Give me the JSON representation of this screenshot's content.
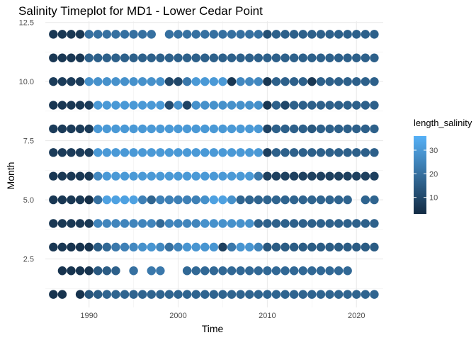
{
  "chart_data": {
    "type": "scatter",
    "title": "Salinity Timeplot for MD1 - Lower Cedar Point",
    "xlabel": "Time",
    "ylabel": "Month",
    "xlim": [
      1985.1,
      2023.0
    ],
    "ylim": [
      0.45,
      12.55
    ],
    "x_ticks": [
      {
        "value": 1990,
        "label": "1990"
      },
      {
        "value": 2000,
        "label": "2000"
      },
      {
        "value": 2010,
        "label": "2010"
      },
      {
        "value": 2020,
        "label": "2020"
      }
    ],
    "y_ticks": [
      {
        "value": 2.5,
        "label": "2.5"
      },
      {
        "value": 5.0,
        "label": "5.0"
      },
      {
        "value": 7.5,
        "label": "7.5"
      },
      {
        "value": 10.0,
        "label": "10.0"
      },
      {
        "value": 12.5,
        "label": "12.5"
      }
    ],
    "grid": true,
    "legend": {
      "title": "length_salinity",
      "placement": "right",
      "range": [
        3,
        36
      ],
      "ticks": [
        {
          "value": 10,
          "label": "10"
        },
        {
          "value": 20,
          "label": "20"
        },
        {
          "value": 30,
          "label": "30"
        }
      ],
      "color_low": "#132b43",
      "color_high": "#56b1f7"
    },
    "years": [
      1986,
      1987,
      1988,
      1989,
      1990,
      1991,
      1992,
      1993,
      1994,
      1995,
      1996,
      1997,
      1998,
      1999,
      2000,
      2001,
      2002,
      2003,
      2004,
      2005,
      2006,
      2007,
      2008,
      2009,
      2010,
      2011,
      2012,
      2013,
      2014,
      2015,
      2016,
      2017,
      2018,
      2019,
      2020,
      2021,
      2022
    ],
    "months": [
      {
        "month": 1,
        "values": [
          5,
          5,
          null,
          5,
          13,
          15,
          17,
          17,
          17,
          17,
          17,
          17,
          17,
          17,
          17,
          17,
          17,
          17,
          17,
          17,
          17,
          17,
          17,
          17,
          17,
          17,
          17,
          17,
          17,
          17,
          17,
          17,
          17,
          17,
          17,
          17,
          17
        ]
      },
      {
        "month": 2,
        "values": [
          null,
          5,
          5,
          5,
          5,
          14,
          15,
          16,
          null,
          20,
          null,
          22,
          22,
          null,
          null,
          18,
          18,
          18,
          18,
          18,
          18,
          18,
          18,
          18,
          18,
          18,
          18,
          18,
          18,
          18,
          18,
          18,
          18,
          18,
          null,
          null,
          null
        ]
      },
      {
        "month": 3,
        "values": [
          6,
          6,
          5,
          5,
          5,
          15,
          18,
          22,
          24,
          26,
          28,
          29,
          26,
          20,
          25,
          29,
          29,
          29,
          29,
          8,
          22,
          29,
          29,
          25,
          14,
          15,
          15,
          15,
          15,
          15,
          15,
          15,
          15,
          15,
          15,
          15,
          15
        ]
      },
      {
        "month": 4,
        "values": [
          6,
          6,
          6,
          6,
          6,
          25,
          25,
          25,
          25,
          25,
          25,
          25,
          18,
          25,
          25,
          25,
          25,
          28,
          28,
          28,
          28,
          28,
          28,
          16,
          16,
          16,
          16,
          16,
          16,
          16,
          16,
          16,
          16,
          16,
          16,
          16,
          16
        ]
      },
      {
        "month": 5,
        "values": [
          6,
          6,
          6,
          6,
          4,
          20,
          32,
          32,
          32,
          32,
          24,
          17,
          24,
          24,
          24,
          24,
          24,
          28,
          32,
          32,
          28,
          17,
          17,
          17,
          17,
          17,
          17,
          17,
          17,
          17,
          17,
          17,
          17,
          17,
          null,
          17,
          17
        ]
      },
      {
        "month": 6,
        "values": [
          6,
          6,
          6,
          6,
          6,
          26,
          30,
          30,
          30,
          30,
          30,
          30,
          30,
          30,
          30,
          30,
          30,
          30,
          30,
          30,
          30,
          30,
          30,
          22,
          8,
          8,
          8,
          8,
          8,
          8,
          8,
          8,
          8,
          8,
          8,
          8,
          8
        ]
      },
      {
        "month": 7,
        "values": [
          7,
          7,
          7,
          7,
          7,
          30,
          30,
          30,
          30,
          30,
          30,
          30,
          30,
          30,
          30,
          30,
          30,
          30,
          30,
          30,
          30,
          30,
          30,
          30,
          8,
          16,
          16,
          16,
          16,
          16,
          16,
          16,
          16,
          16,
          16,
          16,
          16
        ]
      },
      {
        "month": 8,
        "values": [
          7,
          7,
          7,
          7,
          7,
          30,
          30,
          30,
          30,
          30,
          30,
          30,
          30,
          30,
          30,
          30,
          30,
          30,
          30,
          30,
          30,
          30,
          30,
          30,
          9,
          16,
          16,
          16,
          16,
          14,
          16,
          16,
          16,
          16,
          16,
          16,
          16
        ]
      },
      {
        "month": 9,
        "values": [
          6,
          6,
          6,
          6,
          7,
          30,
          30,
          30,
          30,
          30,
          30,
          30,
          30,
          11,
          28,
          9,
          28,
          28,
          28,
          28,
          28,
          28,
          28,
          28,
          6,
          16,
          10,
          16,
          16,
          16,
          16,
          16,
          16,
          16,
          16,
          16,
          16
        ]
      },
      {
        "month": 10,
        "values": [
          7,
          7,
          7,
          7,
          28,
          28,
          28,
          28,
          28,
          28,
          28,
          28,
          28,
          10,
          10,
          22,
          30,
          30,
          30,
          30,
          6,
          26,
          26,
          26,
          6,
          16,
          16,
          16,
          16,
          6,
          16,
          16,
          16,
          16,
          16,
          16,
          16
        ]
      },
      {
        "month": 11,
        "values": [
          6,
          6,
          6,
          6,
          16,
          16,
          16,
          16,
          16,
          16,
          16,
          16,
          16,
          16,
          16,
          16,
          16,
          16,
          16,
          16,
          16,
          16,
          16,
          16,
          16,
          16,
          16,
          16,
          16,
          16,
          16,
          16,
          16,
          16,
          16,
          16,
          16
        ]
      },
      {
        "month": 12,
        "values": [
          6,
          6,
          6,
          6,
          20,
          20,
          20,
          20,
          20,
          20,
          20,
          20,
          null,
          20,
          20,
          20,
          20,
          20,
          20,
          20,
          20,
          20,
          20,
          20,
          12,
          16,
          16,
          16,
          16,
          16,
          16,
          16,
          16,
          16,
          16,
          16,
          16
        ]
      }
    ]
  }
}
